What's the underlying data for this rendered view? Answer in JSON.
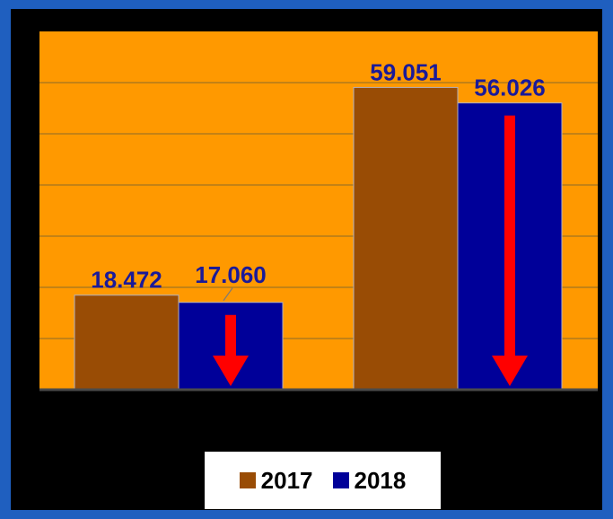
{
  "colors": {
    "page_background": "#1f5fbf",
    "frame_background": "#000000",
    "plot_background": "#ff9900",
    "gridline": "#8a6a2a",
    "axis": "#4a4a4a",
    "label_text": "#1a1a99",
    "arrow": "#ff0000"
  },
  "chart_data": {
    "type": "bar",
    "title": "",
    "xlabel": "",
    "ylabel": "",
    "categories": [
      "",
      ""
    ],
    "series": [
      {
        "name": "2017",
        "color": "#994c05",
        "values": [
          18.472,
          59.051
        ],
        "labels": [
          "18.472",
          "59.051"
        ]
      },
      {
        "name": "2018",
        "color": "#000099",
        "values": [
          17.06,
          56.026
        ],
        "labels": [
          "17.060",
          "56.026"
        ]
      }
    ],
    "ylim": [
      0,
      70
    ],
    "y_gridline_step": 10,
    "grid": true,
    "legend_position": "bottom",
    "annotations": [
      {
        "type": "down-arrow",
        "series": "2018",
        "category_index": 0,
        "color": "#ff0000"
      },
      {
        "type": "down-arrow",
        "series": "2018",
        "category_index": 1,
        "color": "#ff0000"
      }
    ]
  },
  "legend": {
    "items": [
      {
        "label": "2017",
        "color": "#994c05"
      },
      {
        "label": "2018",
        "color": "#000099"
      }
    ]
  }
}
